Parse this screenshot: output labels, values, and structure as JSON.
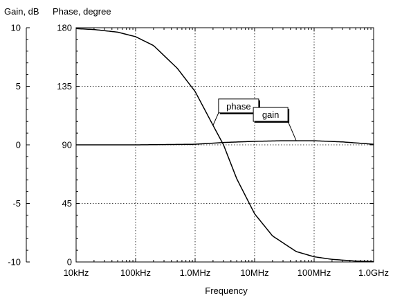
{
  "chart_data": {
    "type": "line",
    "title": "",
    "xlabel": "Frequency",
    "x_scale": "log",
    "xlim": [
      10000,
      1000000000
    ],
    "x_ticks": [
      {
        "value": 10000,
        "label": "10kHz"
      },
      {
        "value": 100000,
        "label": "100kHz"
      },
      {
        "value": 1000000,
        "label": "1.0MHz"
      },
      {
        "value": 10000000,
        "label": "10MHz"
      },
      {
        "value": 100000000,
        "label": "100MHz"
      },
      {
        "value": 1000000000,
        "label": "1.0GHz"
      }
    ],
    "left_axis": {
      "label": "Gain, dB",
      "lim": [
        -10,
        10
      ],
      "ticks": [
        {
          "value": 10,
          "label": "10"
        },
        {
          "value": 5,
          "label": "5"
        },
        {
          "value": 0,
          "label": "0"
        },
        {
          "value": -5,
          "label": "-5"
        },
        {
          "value": -10,
          "label": "-10"
        }
      ]
    },
    "right_axis": {
      "label": "Phase, degree",
      "lim": [
        0,
        180
      ],
      "ticks": [
        {
          "value": 180,
          "label": "180"
        },
        {
          "value": 135,
          "label": "135"
        },
        {
          "value": 90,
          "label": "90"
        },
        {
          "value": 45,
          "label": "45"
        },
        {
          "value": 0,
          "label": "0"
        }
      ]
    },
    "grid": true,
    "series": [
      {
        "name": "gain",
        "axis": "left",
        "color": "#000000",
        "x": [
          10000,
          100000,
          1000000,
          3000000,
          10000000,
          30000000,
          100000000,
          300000000,
          1000000000
        ],
        "y": [
          0.0,
          0.0,
          0.05,
          0.2,
          0.3,
          0.35,
          0.35,
          0.25,
          0.05
        ]
      },
      {
        "name": "phase",
        "axis": "right",
        "color": "#000000",
        "x": [
          10000,
          20000,
          50000,
          100000,
          200000,
          500000,
          1000000,
          2000000,
          3000000,
          5000000,
          10000000,
          20000000,
          50000000,
          100000000,
          200000000,
          500000000,
          1000000000
        ],
        "y": [
          179.3,
          178.6,
          176.6,
          173.1,
          166.3,
          148.9,
          131,
          105,
          90,
          64,
          37,
          20,
          8,
          4,
          2,
          0.7,
          0.3
        ]
      }
    ],
    "callouts": [
      {
        "text": "phase",
        "series": "phase",
        "x": 2000000,
        "y_right": 105
      },
      {
        "text": "gain",
        "series": "gain",
        "x": 50000000,
        "y_left": 0.35
      }
    ]
  }
}
